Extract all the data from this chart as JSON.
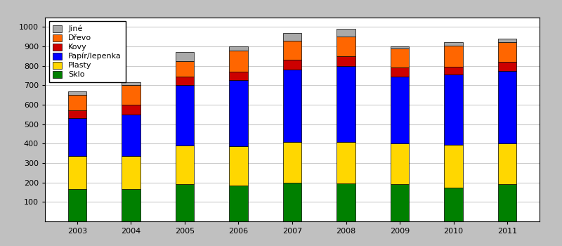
{
  "years": [
    2003,
    2004,
    2005,
    2006,
    2007,
    2008,
    2009,
    2010,
    2011
  ],
  "categories": [
    "Sklo",
    "Plasty",
    "Papír/lepenka",
    "Kovy",
    "Dřevo",
    "Jiné"
  ],
  "colors": [
    "#008000",
    "#FFD700",
    "#0000FF",
    "#CC0000",
    "#FF6600",
    "#A9A9A9"
  ],
  "data": {
    "Sklo": [
      165,
      165,
      190,
      185,
      200,
      195,
      190,
      175,
      190
    ],
    "Plasty": [
      170,
      170,
      200,
      200,
      210,
      215,
      210,
      220,
      210
    ],
    "Papír/lepenka": [
      195,
      215,
      310,
      340,
      370,
      390,
      345,
      360,
      375
    ],
    "Kovy": [
      40,
      50,
      45,
      45,
      50,
      50,
      45,
      40,
      45
    ],
    "Dřevo": [
      80,
      100,
      80,
      110,
      100,
      100,
      100,
      110,
      100
    ],
    "Jiné": [
      20,
      15,
      45,
      20,
      40,
      40,
      10,
      15,
      20
    ]
  },
  "ylim": [
    0,
    1050
  ],
  "yticks": [
    100,
    200,
    300,
    400,
    500,
    600,
    700,
    800,
    900,
    1000
  ],
  "background_color": "#C0C0C0",
  "plot_bg_color": "#FFFFFF",
  "legend_fontsize": 8,
  "tick_fontsize": 8,
  "bar_width": 0.35,
  "edge_color": "#000000"
}
